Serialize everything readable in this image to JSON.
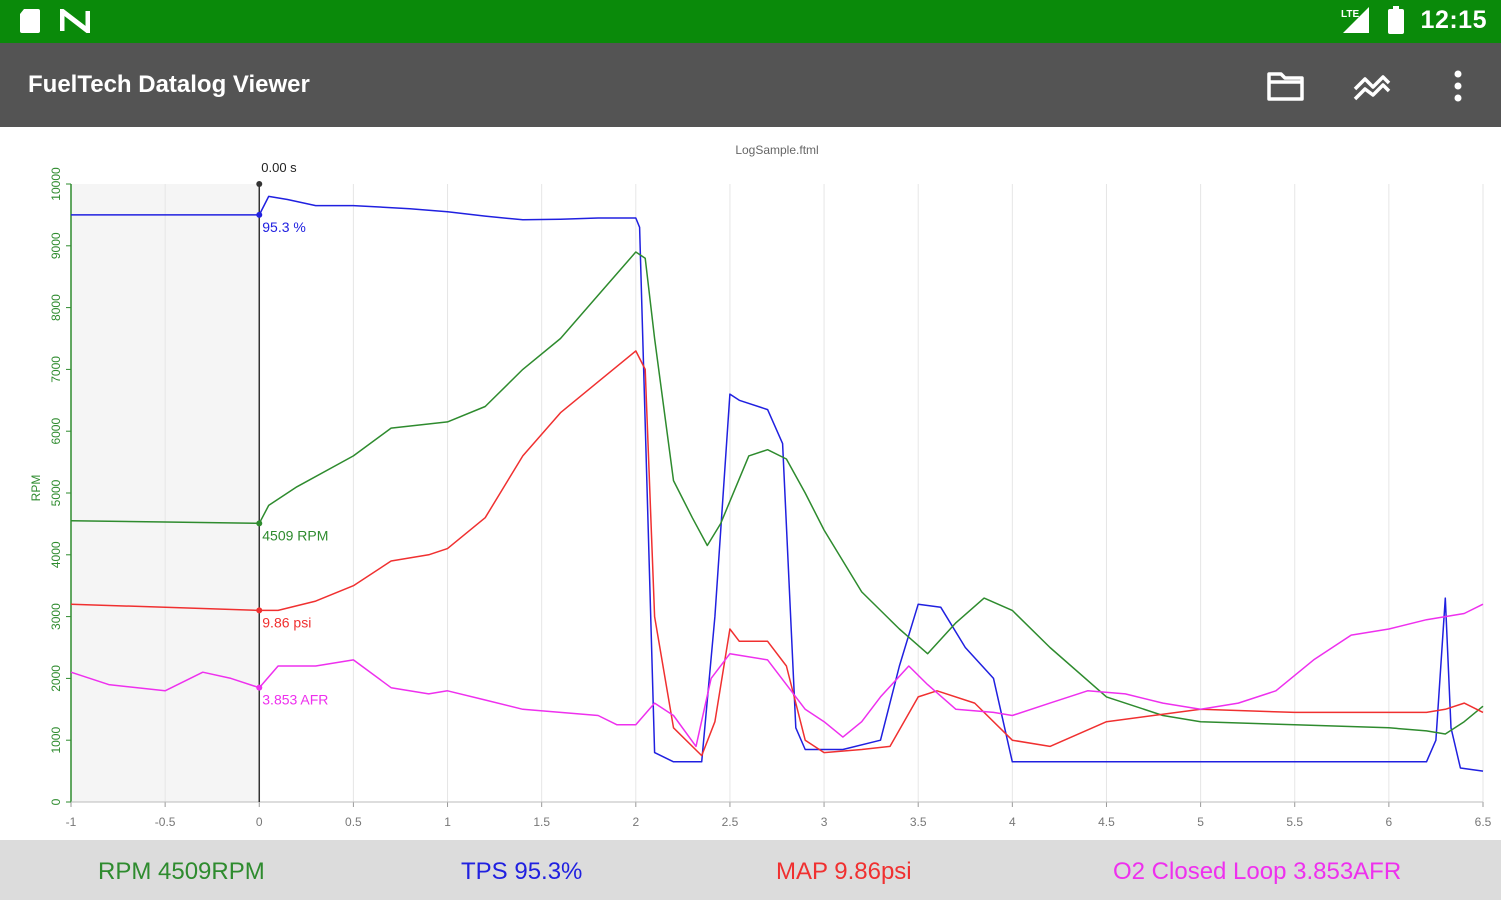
{
  "status_bar": {
    "time": "12:15",
    "left_icons": [
      "sd-card-icon",
      "nfc-icon"
    ],
    "right_icons": [
      "signal-icon",
      "battery-icon"
    ]
  },
  "app_bar": {
    "title": "FuelTech Datalog Viewer",
    "actions": [
      "folder-icon",
      "chart-lines-icon",
      "overflow-menu-icon"
    ]
  },
  "colors": {
    "status_bar": "#0a8a0a",
    "app_bar": "#545454",
    "rpm": "#2e8b2e",
    "tps": "#2020e0",
    "map": "#f03030",
    "o2": "#ee30ee"
  },
  "readouts": [
    {
      "key": "rpm",
      "text": "RPM 4509RPM"
    },
    {
      "key": "tps",
      "text": "TPS 95.3%"
    },
    {
      "key": "map",
      "text": "MAP 9.86psi"
    },
    {
      "key": "o2",
      "text": "O2 Closed Loop 3.853AFR"
    }
  ],
  "chart_data": {
    "type": "line",
    "title": "LogSample.ftml",
    "ylabel": "RPM",
    "xlim": [
      -1,
      6.5
    ],
    "ylim": [
      0,
      10000
    ],
    "x_ticks": [
      "-1",
      "-0.5",
      "0",
      "0.5",
      "1",
      "1.5",
      "2",
      "2.5",
      "3",
      "3.5",
      "4",
      "4.5",
      "5",
      "5.5",
      "6",
      "6.5"
    ],
    "y_ticks": [
      "0",
      "1000",
      "2000",
      "3000",
      "4000",
      "5000",
      "6000",
      "7000",
      "8000",
      "9000",
      "10000"
    ],
    "grid": true,
    "cursor": {
      "x": 0,
      "label": "0.00 s"
    },
    "series": [
      {
        "key": "tps",
        "cursor_label": "95.3 %",
        "points": [
          [
            -1,
            9500
          ],
          [
            -0.5,
            9500
          ],
          [
            0,
            9500
          ],
          [
            0.05,
            9800
          ],
          [
            0.15,
            9750
          ],
          [
            0.3,
            9650
          ],
          [
            0.5,
            9650
          ],
          [
            0.8,
            9600
          ],
          [
            1.0,
            9550
          ],
          [
            1.2,
            9480
          ],
          [
            1.4,
            9420
          ],
          [
            1.6,
            9430
          ],
          [
            1.8,
            9450
          ],
          [
            2.0,
            9450
          ],
          [
            2.02,
            9300
          ],
          [
            2.1,
            800
          ],
          [
            2.2,
            650
          ],
          [
            2.35,
            650
          ],
          [
            2.42,
            3000
          ],
          [
            2.5,
            6600
          ],
          [
            2.55,
            6500
          ],
          [
            2.7,
            6350
          ],
          [
            2.78,
            5800
          ],
          [
            2.85,
            1200
          ],
          [
            2.9,
            850
          ],
          [
            3.0,
            850
          ],
          [
            3.1,
            850
          ],
          [
            3.3,
            1000
          ],
          [
            3.4,
            2200
          ],
          [
            3.5,
            3200
          ],
          [
            3.62,
            3150
          ],
          [
            3.75,
            2500
          ],
          [
            3.9,
            2000
          ],
          [
            4.0,
            650
          ],
          [
            4.5,
            650
          ],
          [
            5.0,
            650
          ],
          [
            5.5,
            650
          ],
          [
            6.0,
            650
          ],
          [
            6.2,
            650
          ],
          [
            6.25,
            1000
          ],
          [
            6.3,
            3300
          ],
          [
            6.33,
            1200
          ],
          [
            6.38,
            550
          ],
          [
            6.5,
            500
          ]
        ]
      },
      {
        "key": "rpm",
        "cursor_label": "4509 RPM",
        "points": [
          [
            -1,
            4550
          ],
          [
            -0.5,
            4530
          ],
          [
            0,
            4509
          ],
          [
            0.05,
            4800
          ],
          [
            0.2,
            5100
          ],
          [
            0.5,
            5600
          ],
          [
            0.7,
            6050
          ],
          [
            1.0,
            6150
          ],
          [
            1.2,
            6400
          ],
          [
            1.4,
            7000
          ],
          [
            1.6,
            7500
          ],
          [
            1.8,
            8200
          ],
          [
            2.0,
            8900
          ],
          [
            2.05,
            8800
          ],
          [
            2.1,
            7500
          ],
          [
            2.2,
            5200
          ],
          [
            2.3,
            4600
          ],
          [
            2.38,
            4150
          ],
          [
            2.45,
            4500
          ],
          [
            2.6,
            5600
          ],
          [
            2.7,
            5700
          ],
          [
            2.8,
            5550
          ],
          [
            2.9,
            5000
          ],
          [
            3.0,
            4400
          ],
          [
            3.2,
            3400
          ],
          [
            3.4,
            2800
          ],
          [
            3.55,
            2400
          ],
          [
            3.7,
            2900
          ],
          [
            3.85,
            3300
          ],
          [
            4.0,
            3100
          ],
          [
            4.2,
            2500
          ],
          [
            4.5,
            1700
          ],
          [
            4.8,
            1400
          ],
          [
            5.0,
            1300
          ],
          [
            5.5,
            1250
          ],
          [
            6.0,
            1200
          ],
          [
            6.2,
            1150
          ],
          [
            6.3,
            1100
          ],
          [
            6.4,
            1300
          ],
          [
            6.5,
            1550
          ]
        ]
      },
      {
        "key": "map",
        "cursor_label": "9.86 psi",
        "points": [
          [
            -1,
            3200
          ],
          [
            -0.5,
            3150
          ],
          [
            0,
            3100
          ],
          [
            0.1,
            3100
          ],
          [
            0.3,
            3250
          ],
          [
            0.5,
            3500
          ],
          [
            0.7,
            3900
          ],
          [
            0.9,
            4000
          ],
          [
            1.0,
            4100
          ],
          [
            1.2,
            4600
          ],
          [
            1.4,
            5600
          ],
          [
            1.6,
            6300
          ],
          [
            1.8,
            6800
          ],
          [
            2.0,
            7300
          ],
          [
            2.05,
            7000
          ],
          [
            2.1,
            3000
          ],
          [
            2.2,
            1200
          ],
          [
            2.35,
            750
          ],
          [
            2.42,
            1300
          ],
          [
            2.5,
            2800
          ],
          [
            2.55,
            2600
          ],
          [
            2.7,
            2600
          ],
          [
            2.8,
            2200
          ],
          [
            2.9,
            1000
          ],
          [
            3.0,
            800
          ],
          [
            3.2,
            850
          ],
          [
            3.35,
            900
          ],
          [
            3.5,
            1700
          ],
          [
            3.6,
            1800
          ],
          [
            3.8,
            1600
          ],
          [
            4.0,
            1000
          ],
          [
            4.2,
            900
          ],
          [
            4.5,
            1300
          ],
          [
            5.0,
            1500
          ],
          [
            5.5,
            1450
          ],
          [
            6.0,
            1450
          ],
          [
            6.2,
            1450
          ],
          [
            6.3,
            1500
          ],
          [
            6.4,
            1600
          ],
          [
            6.5,
            1450
          ]
        ]
      },
      {
        "key": "o2",
        "cursor_label": "3.853 AFR",
        "points": [
          [
            -1,
            2100
          ],
          [
            -0.8,
            1900
          ],
          [
            -0.5,
            1800
          ],
          [
            -0.3,
            2100
          ],
          [
            -0.15,
            2000
          ],
          [
            0,
            1850
          ],
          [
            0.1,
            2200
          ],
          [
            0.3,
            2200
          ],
          [
            0.5,
            2300
          ],
          [
            0.7,
            1850
          ],
          [
            0.9,
            1750
          ],
          [
            1.0,
            1800
          ],
          [
            1.2,
            1650
          ],
          [
            1.4,
            1500
          ],
          [
            1.6,
            1450
          ],
          [
            1.8,
            1400
          ],
          [
            1.9,
            1250
          ],
          [
            2.0,
            1250
          ],
          [
            2.1,
            1600
          ],
          [
            2.2,
            1400
          ],
          [
            2.32,
            900
          ],
          [
            2.4,
            2000
          ],
          [
            2.5,
            2400
          ],
          [
            2.7,
            2300
          ],
          [
            2.8,
            1900
          ],
          [
            2.9,
            1500
          ],
          [
            3.0,
            1300
          ],
          [
            3.1,
            1050
          ],
          [
            3.2,
            1300
          ],
          [
            3.3,
            1700
          ],
          [
            3.45,
            2200
          ],
          [
            3.55,
            1900
          ],
          [
            3.7,
            1500
          ],
          [
            3.9,
            1450
          ],
          [
            4.0,
            1400
          ],
          [
            4.2,
            1600
          ],
          [
            4.4,
            1800
          ],
          [
            4.6,
            1750
          ],
          [
            4.8,
            1600
          ],
          [
            5.0,
            1500
          ],
          [
            5.2,
            1600
          ],
          [
            5.4,
            1800
          ],
          [
            5.6,
            2300
          ],
          [
            5.8,
            2700
          ],
          [
            6.0,
            2800
          ],
          [
            6.2,
            2950
          ],
          [
            6.4,
            3050
          ],
          [
            6.5,
            3200
          ]
        ]
      }
    ]
  }
}
